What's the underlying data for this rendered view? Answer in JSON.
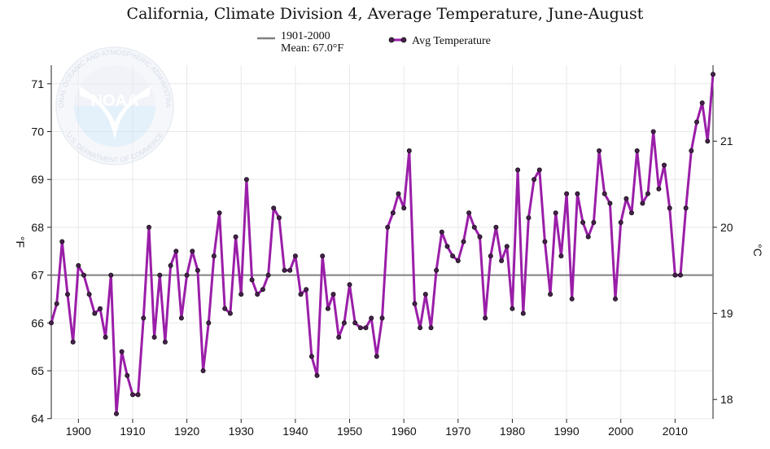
{
  "chart_data": {
    "type": "line",
    "title": "California, Climate Division 4, Average Temperature, June-August",
    "xlabel": "",
    "ylabel": "°F",
    "ylabel_right": "°C",
    "xlim": [
      1895,
      2017
    ],
    "ylim": [
      64,
      71.4
    ],
    "grid": true,
    "legend_position": "top-center",
    "x_ticks": [
      1900,
      1910,
      1920,
      1930,
      1940,
      1950,
      1960,
      1970,
      1980,
      1990,
      2000,
      2010
    ],
    "y_ticks": [
      64,
      65,
      66,
      67,
      68,
      69,
      70,
      71
    ],
    "y_right_ticks": [
      18,
      19,
      20,
      21
    ],
    "reference_line": {
      "name": "1901-2000",
      "label": "Mean: 67.0°F",
      "value": 67.0,
      "color": "#808080"
    },
    "series": [
      {
        "name": "Avg Temperature",
        "color": "#9a1ea8",
        "x": [
          1895,
          1896,
          1897,
          1898,
          1899,
          1900,
          1901,
          1902,
          1903,
          1904,
          1905,
          1906,
          1907,
          1908,
          1909,
          1910,
          1911,
          1912,
          1913,
          1914,
          1915,
          1916,
          1917,
          1918,
          1919,
          1920,
          1921,
          1922,
          1923,
          1924,
          1925,
          1926,
          1927,
          1928,
          1929,
          1930,
          1931,
          1932,
          1933,
          1934,
          1935,
          1936,
          1937,
          1938,
          1939,
          1940,
          1941,
          1942,
          1943,
          1944,
          1945,
          1946,
          1947,
          1948,
          1949,
          1950,
          1951,
          1952,
          1953,
          1954,
          1955,
          1956,
          1957,
          1958,
          1959,
          1960,
          1961,
          1962,
          1963,
          1964,
          1965,
          1966,
          1967,
          1968,
          1969,
          1970,
          1971,
          1972,
          1973,
          1974,
          1975,
          1976,
          1977,
          1978,
          1979,
          1980,
          1981,
          1982,
          1983,
          1984,
          1985,
          1986,
          1987,
          1988,
          1989,
          1990,
          1991,
          1992,
          1993,
          1994,
          1995,
          1996,
          1997,
          1998,
          1999,
          2000,
          2001,
          2002,
          2003,
          2004,
          2005,
          2006,
          2007,
          2008,
          2009,
          2010,
          2011,
          2012,
          2013,
          2014,
          2015,
          2016,
          2017
        ],
        "values": [
          66.0,
          66.4,
          67.7,
          66.6,
          65.6,
          67.2,
          67.0,
          66.6,
          66.2,
          66.3,
          65.7,
          67.0,
          64.1,
          65.4,
          64.9,
          64.5,
          64.5,
          66.1,
          68.0,
          65.7,
          67.0,
          65.6,
          67.2,
          67.5,
          66.1,
          67.0,
          67.5,
          67.1,
          65.0,
          66.0,
          67.4,
          68.3,
          66.3,
          66.2,
          67.8,
          66.6,
          69.0,
          66.9,
          66.6,
          66.7,
          67.0,
          68.4,
          68.2,
          67.1,
          67.1,
          67.4,
          66.6,
          66.7,
          65.3,
          64.9,
          67.4,
          66.3,
          66.6,
          65.7,
          66.0,
          66.8,
          66.0,
          65.9,
          65.9,
          66.1,
          65.3,
          66.1,
          68.0,
          68.3,
          68.7,
          68.4,
          69.6,
          66.4,
          65.9,
          66.6,
          65.9,
          67.1,
          67.9,
          67.6,
          67.4,
          67.3,
          67.7,
          68.3,
          68.0,
          67.8,
          66.1,
          67.4,
          68.0,
          67.3,
          67.6,
          66.3,
          69.2,
          66.2,
          68.2,
          69.0,
          69.2,
          67.7,
          66.6,
          68.3,
          67.4,
          68.7,
          66.5,
          68.7,
          68.1,
          67.8,
          68.1,
          69.6,
          68.7,
          68.5,
          66.5,
          68.1,
          68.6,
          68.3,
          69.6,
          68.5,
          68.7,
          70.0,
          68.8,
          69.3,
          68.4,
          67.0,
          67.0,
          68.4,
          69.6,
          70.2,
          70.6,
          69.8,
          71.2
        ]
      }
    ],
    "logo": {
      "text": "NOAA",
      "ring_top": "NATIONAL OCEANIC AND ATMOSPHERIC ADMINISTRATION",
      "ring_bottom": "U.S. DEPARTMENT OF COMMERCE"
    }
  }
}
